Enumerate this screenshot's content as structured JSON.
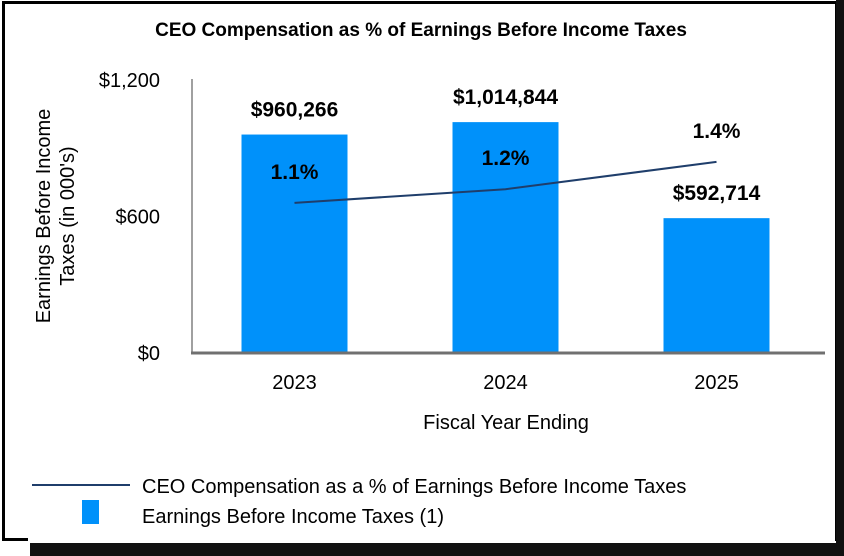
{
  "chart_data": {
    "type": "bar",
    "title": "CEO Compensation as % of Earnings Before Income Taxes",
    "xlabel": "Fiscal Year Ending",
    "ylabel": "Earnings Before Income Taxes (in 000's)",
    "ylabel_lines": [
      "Earnings Before Income",
      "Taxes (in 000's)"
    ],
    "categories": [
      "2023",
      "2024",
      "2025"
    ],
    "ylim": [
      0,
      1200
    ],
    "yticks": [
      0,
      600,
      1200
    ],
    "ytick_labels": [
      "$0",
      "$600",
      "$1,200"
    ],
    "secondary_ylim_percent": [
      0,
      2.0
    ],
    "secondary_axis_visible": false,
    "grid": false,
    "legend_position": "bottom",
    "series": [
      {
        "name": "Earnings Before Income Taxes (1)",
        "type": "bar",
        "color": "#0091FA",
        "values": [
          960.266,
          1014.844,
          592.714
        ],
        "data_labels": [
          "$960,266",
          "$1,014,844",
          "$592,714"
        ]
      },
      {
        "name": "CEO Compensation as a % of Earnings Before Income Taxes",
        "type": "line",
        "axis": "secondary",
        "color": "#1F3E6B",
        "values": [
          1.1,
          1.2,
          1.4
        ],
        "data_labels": [
          "1.1%",
          "1.2%",
          "1.4%"
        ]
      }
    ]
  }
}
